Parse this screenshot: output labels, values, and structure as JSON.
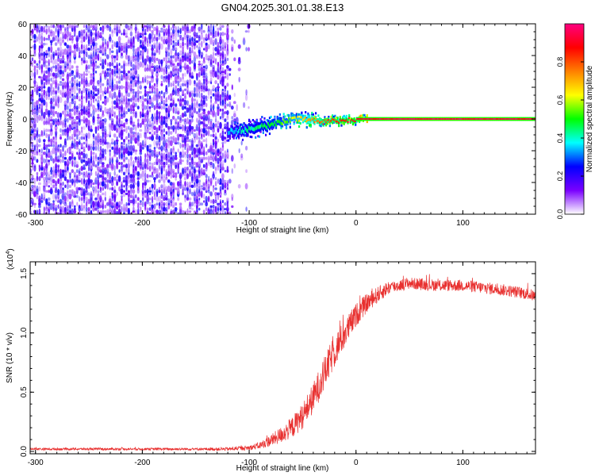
{
  "title": "GN04.2025.301.01.38.E13",
  "colors": {
    "snr_line": "#e8302f",
    "axis": "#000000",
    "background": "#ffffff"
  },
  "chart_data": [
    {
      "type": "heatmap",
      "name": "spectrogram",
      "xlabel": "Height of straight line (km)",
      "ylabel": "Frequency (Hz)",
      "xlim": [
        -305,
        168
      ],
      "ylim": [
        -60,
        60
      ],
      "xticks": [
        -300,
        -200,
        -100,
        0,
        100
      ],
      "xtick_labels": [
        "-300",
        "-200",
        "-100",
        "0",
        "100"
      ],
      "yticks": [
        -60,
        -40,
        -20,
        0,
        20,
        40,
        60
      ],
      "ytick_labels": [
        "-60",
        "-40",
        "-20",
        "0",
        "20",
        "40",
        "60"
      ],
      "noise_region": {
        "x_range": [
          -305,
          -120
        ],
        "amplitude_range": [
          0.05,
          0.25
        ],
        "sparse_tail_to": -95
      },
      "signal_ridge": [
        {
          "x": -120,
          "freq": -8,
          "amp": 0.35,
          "width": 3
        },
        {
          "x": -105,
          "freq": -7,
          "amp": 0.4,
          "width": 3
        },
        {
          "x": -90,
          "freq": -5,
          "amp": 0.45,
          "width": 3
        },
        {
          "x": -75,
          "freq": -3,
          "amp": 0.5,
          "width": 2.5
        },
        {
          "x": -60,
          "freq": 0,
          "amp": 0.6,
          "width": 2
        },
        {
          "x": -45,
          "freq": 0,
          "amp": 0.7,
          "width": 2
        },
        {
          "x": -30,
          "freq": -2,
          "amp": 0.8,
          "width": 1.5
        },
        {
          "x": -15,
          "freq": -1,
          "amp": 0.85,
          "width": 1.5
        },
        {
          "x": 0,
          "freq": 0,
          "amp": 0.92,
          "width": 1.2
        },
        {
          "x": 50,
          "freq": 0,
          "amp": 0.95,
          "width": 1.2
        },
        {
          "x": 100,
          "freq": 0,
          "amp": 0.95,
          "width": 1.2
        },
        {
          "x": 168,
          "freq": 0,
          "amp": 0.93,
          "width": 1.2
        }
      ],
      "colorbar": {
        "label": "Normalized spectral amplitude",
        "range": [
          0,
          1
        ],
        "ticks": [
          0.0,
          0.2,
          0.4,
          0.6,
          0.8
        ],
        "tick_labels": [
          "0.0",
          "0.2",
          "0.4",
          "0.6",
          "0.8"
        ],
        "colormap": [
          "#ffffff",
          "#7a00ff",
          "#0000ff",
          "#00ffff",
          "#00ff00",
          "#ffff00",
          "#ff8000",
          "#ff0000",
          "#ff0080"
        ]
      }
    },
    {
      "type": "line",
      "name": "snr",
      "xlabel": "Height of straight line (km)",
      "ylabel": "SNR (10 * v/v)",
      "scale_label": "(x10",
      "scale_exponent": "4",
      "scale_close": ")",
      "xlim": [
        -305,
        168
      ],
      "ylim": [
        -0.02,
        1.6
      ],
      "xticks": [
        -300,
        -200,
        -100,
        0,
        100
      ],
      "xtick_labels": [
        "-300",
        "-200",
        "-100",
        "0",
        "100"
      ],
      "yticks": [
        0.0,
        0.5,
        1.0,
        1.5
      ],
      "ytick_labels": [
        "0.0",
        "0.5",
        "1.0",
        "1.5"
      ],
      "series": [
        {
          "name": "SNR",
          "x": [
            -305,
            -250,
            -200,
            -150,
            -120,
            -100,
            -90,
            -80,
            -70,
            -60,
            -50,
            -40,
            -30,
            -20,
            -10,
            0,
            10,
            20,
            30,
            40,
            50,
            60,
            80,
            100,
            120,
            140,
            160,
            168
          ],
          "mean": [
            0.02,
            0.02,
            0.02,
            0.02,
            0.02,
            0.03,
            0.05,
            0.09,
            0.14,
            0.2,
            0.3,
            0.45,
            0.65,
            0.85,
            1.0,
            1.15,
            1.25,
            1.32,
            1.38,
            1.4,
            1.42,
            1.41,
            1.4,
            1.4,
            1.38,
            1.36,
            1.33,
            1.31
          ],
          "spread": [
            0.01,
            0.01,
            0.01,
            0.01,
            0.015,
            0.02,
            0.03,
            0.05,
            0.07,
            0.09,
            0.11,
            0.13,
            0.14,
            0.14,
            0.12,
            0.1,
            0.08,
            0.07,
            0.06,
            0.05,
            0.05,
            0.05,
            0.05,
            0.05,
            0.05,
            0.05,
            0.05,
            0.05
          ]
        }
      ]
    }
  ]
}
